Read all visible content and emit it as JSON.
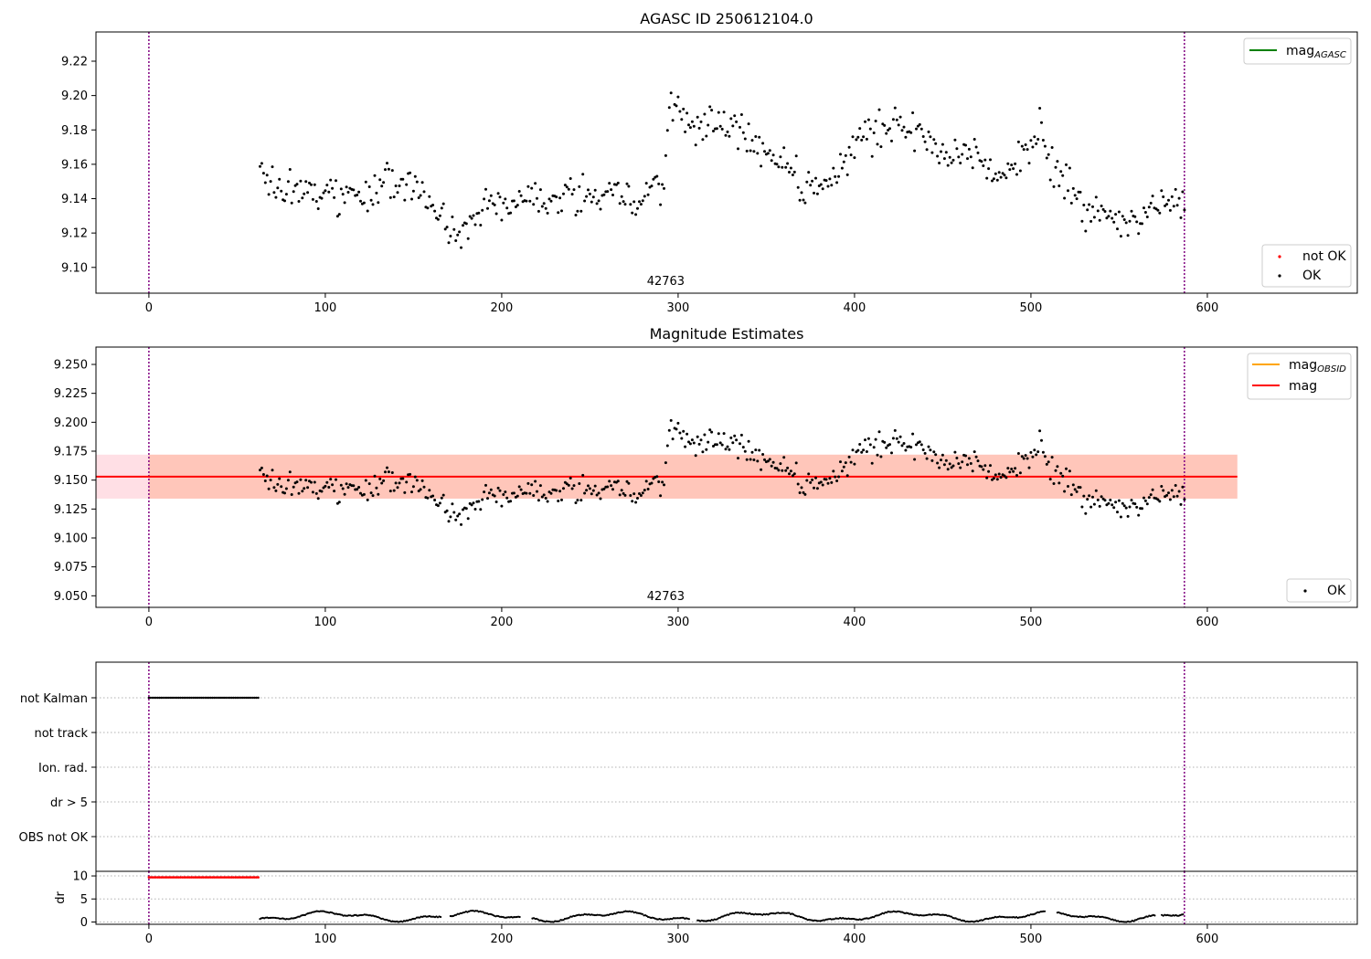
{
  "figure": {
    "colors": {
      "ok": "#000000",
      "not_ok": "#ff0000",
      "mag_agasc": "#008000",
      "mag_obsid": "#ffa500",
      "mag": "#ff0000",
      "obs_boundary": "#800080",
      "band_outer": "#ffc0cb",
      "band_inner": "#ffa07a"
    }
  },
  "chart_data": [
    {
      "type": "scatter",
      "title": "AGASC ID 250612104.0",
      "xlim": [
        -30,
        685
      ],
      "ylim": [
        9.085,
        9.237
      ],
      "x_ticks": [
        0,
        100,
        200,
        300,
        400,
        500,
        600
      ],
      "y_ticks": [
        9.1,
        9.12,
        9.14,
        9.16,
        9.18,
        9.2,
        9.22
      ],
      "y_tick_labels": [
        "9.10",
        "9.12",
        "9.14",
        "9.16",
        "9.18",
        "9.20",
        "9.22"
      ],
      "vlines": [
        0,
        587
      ],
      "obsid_label": {
        "text": "42763",
        "x": 293
      },
      "legend_upper": [
        {
          "name": "mag",
          "subscript": "AGASC",
          "kind": "line",
          "color": "#008000"
        }
      ],
      "legend_lower": [
        {
          "name": "not OK",
          "kind": "marker",
          "color": "#ff0000"
        },
        {
          "name": "OK",
          "kind": "marker",
          "color": "#000000"
        }
      ],
      "series": {
        "name": "OK",
        "x_start": 63,
        "x_end": 587,
        "knots": [
          [
            63,
            9.155
          ],
          [
            80,
            9.148
          ],
          [
            95,
            9.142
          ],
          [
            110,
            9.14
          ],
          [
            125,
            9.142
          ],
          [
            135,
            9.152
          ],
          [
            150,
            9.148
          ],
          [
            160,
            9.138
          ],
          [
            170,
            9.122
          ],
          [
            182,
            9.124
          ],
          [
            190,
            9.138
          ],
          [
            205,
            9.136
          ],
          [
            215,
            9.146
          ],
          [
            225,
            9.138
          ],
          [
            240,
            9.145
          ],
          [
            255,
            9.138
          ],
          [
            262,
            9.146
          ],
          [
            272,
            9.136
          ],
          [
            282,
            9.142
          ],
          [
            292,
            9.148
          ],
          [
            294,
            9.19
          ],
          [
            300,
            9.19
          ],
          [
            310,
            9.182
          ],
          [
            320,
            9.186
          ],
          [
            335,
            9.18
          ],
          [
            350,
            9.166
          ],
          [
            362,
            9.16
          ],
          [
            372,
            9.145
          ],
          [
            385,
            9.15
          ],
          [
            395,
            9.16
          ],
          [
            405,
            9.178
          ],
          [
            415,
            9.18
          ],
          [
            425,
            9.184
          ],
          [
            440,
            9.174
          ],
          [
            455,
            9.164
          ],
          [
            470,
            9.166
          ],
          [
            482,
            9.15
          ],
          [
            490,
            9.16
          ],
          [
            500,
            9.172
          ],
          [
            505,
            9.18
          ],
          [
            510,
            9.16
          ],
          [
            522,
            9.145
          ],
          [
            532,
            9.132
          ],
          [
            545,
            9.128
          ],
          [
            555,
            9.124
          ],
          [
            570,
            9.135
          ],
          [
            587,
            9.14
          ]
        ],
        "noise": 0.008
      }
    },
    {
      "type": "scatter",
      "title": "Magnitude Estimates",
      "xlim": [
        -30,
        685
      ],
      "ylim": [
        9.04,
        9.265
      ],
      "x_ticks": [
        0,
        100,
        200,
        300,
        400,
        500,
        600
      ],
      "y_ticks": [
        9.05,
        9.075,
        9.1,
        9.125,
        9.15,
        9.175,
        9.2,
        9.225,
        9.25
      ],
      "y_tick_labels": [
        "9.050",
        "9.075",
        "9.100",
        "9.125",
        "9.150",
        "9.175",
        "9.200",
        "9.225",
        "9.250"
      ],
      "vlines": [
        0,
        587
      ],
      "obsid_label": {
        "text": "42763",
        "x": 293
      },
      "legend_upper": [
        {
          "name": "mag",
          "subscript": "OBSID",
          "kind": "line",
          "color": "#ffa500"
        },
        {
          "name": "mag",
          "kind": "line",
          "color": "#ff0000"
        }
      ],
      "legend_lower": [
        {
          "name": "OK",
          "kind": "marker",
          "color": "#000000"
        }
      ],
      "mag_line": {
        "x": [
          -30,
          617
        ],
        "y": 9.153
      },
      "band_outer": {
        "x": [
          -30,
          617
        ],
        "y": [
          9.134,
          9.172
        ]
      },
      "band_inner": {
        "x": [
          0,
          617
        ],
        "y": [
          9.134,
          9.172
        ]
      }
    },
    {
      "type": "event-flags",
      "categories": [
        "not Kalman",
        "not track",
        "Ion. rad.",
        "dr > 5",
        "OBS not OK"
      ],
      "not_kalman_x": [
        0,
        62
      ],
      "vlines": [
        0,
        587
      ]
    },
    {
      "type": "scatter",
      "ylabel": "dr",
      "xlim": [
        -30,
        685
      ],
      "ylim": [
        -0.5,
        11
      ],
      "x_ticks": [
        0,
        100,
        200,
        300,
        400,
        500,
        600
      ],
      "y_ticks": [
        0,
        5,
        10
      ],
      "y_tick_labels": [
        "0",
        "5",
        "10"
      ],
      "vlines": [
        0,
        587
      ],
      "saturated": {
        "x": [
          0,
          62
        ],
        "y": 9.7
      },
      "tracked_x": [
        63,
        587
      ],
      "gaps": [
        [
          166,
          171
        ],
        [
          211,
          217
        ],
        [
          307,
          311
        ],
        [
          508,
          515
        ],
        [
          571,
          574
        ]
      ]
    }
  ]
}
